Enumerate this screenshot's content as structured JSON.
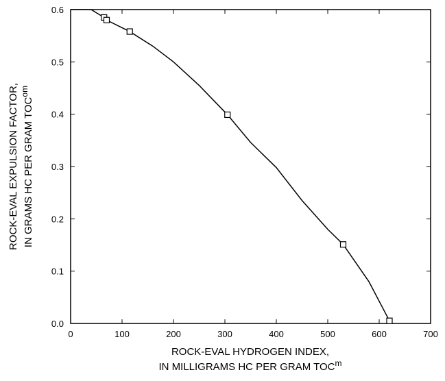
{
  "chart_data": {
    "type": "scatter",
    "title": "",
    "xlabel": {
      "line1": "ROCK-EVAL HYDROGEN INDEX,",
      "line2": "IN MILLIGRAMS HC PER GRAM TOC",
      "superscript": "m"
    },
    "ylabel": {
      "line1": "ROCK-EVAL EXPULSION FACTOR,",
      "line2": "IN GRAMS HC PER GRAM TOC",
      "superscript": "om"
    },
    "xlim": [
      0,
      700
    ],
    "ylim": [
      0,
      0.6
    ],
    "xticks": [
      "0",
      "100",
      "200",
      "300",
      "400",
      "500",
      "600",
      "700"
    ],
    "yticks": [
      "0.0",
      "0.1",
      "0.2",
      "0.3",
      "0.4",
      "0.5",
      "0.6"
    ],
    "grid": false,
    "legend": "none",
    "series": [
      {
        "kind": "points",
        "marker": "open-square",
        "x": [
          65,
          70,
          115,
          305,
          530,
          620
        ],
        "y": [
          0.585,
          0.58,
          0.558,
          0.399,
          0.151,
          0.005
        ]
      },
      {
        "kind": "fit-curve",
        "x": [
          0,
          40,
          65,
          70,
          115,
          160,
          200,
          250,
          305,
          350,
          400,
          450,
          500,
          530,
          580,
          620
        ],
        "y": [
          0.6,
          0.6,
          0.585,
          0.58,
          0.558,
          0.53,
          0.5,
          0.455,
          0.399,
          0.346,
          0.298,
          0.235,
          0.18,
          0.151,
          0.08,
          0.005
        ]
      }
    ]
  }
}
